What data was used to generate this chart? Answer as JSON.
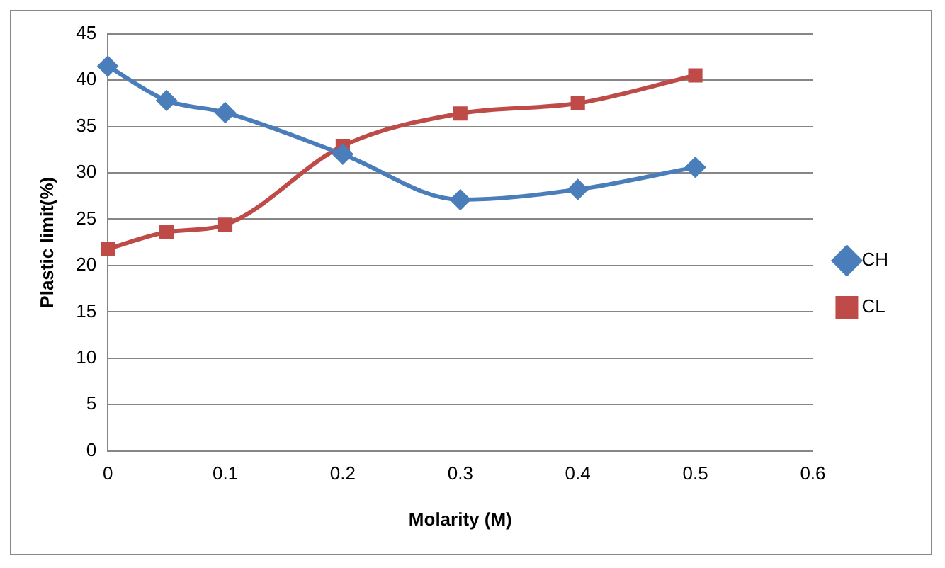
{
  "chart_data": {
    "type": "line",
    "xlabel": "Molarity (M)",
    "ylabel": "Plastic limit(%)",
    "xlim": [
      0,
      0.6
    ],
    "xticks": [
      0,
      0.1,
      0.2,
      0.3,
      0.4,
      0.5,
      0.6
    ],
    "ylim": [
      0,
      45
    ],
    "yticks": [
      0,
      5,
      10,
      15,
      20,
      25,
      30,
      35,
      40,
      45
    ],
    "x": [
      0,
      0.05,
      0.1,
      0.2,
      0.3,
      0.4,
      0.5
    ],
    "series": [
      {
        "name": "CH",
        "color": "#4a7ebb",
        "marker": "diamond",
        "values": [
          41.5,
          37.8,
          36.5,
          32.0,
          27.1,
          28.2,
          30.6
        ]
      },
      {
        "name": "CL",
        "color": "#be4b48",
        "marker": "square",
        "values": [
          21.8,
          23.6,
          24.4,
          32.9,
          36.4,
          37.5,
          40.5
        ]
      }
    ],
    "grid": "y",
    "legend": "right",
    "line_style": "solid"
  }
}
